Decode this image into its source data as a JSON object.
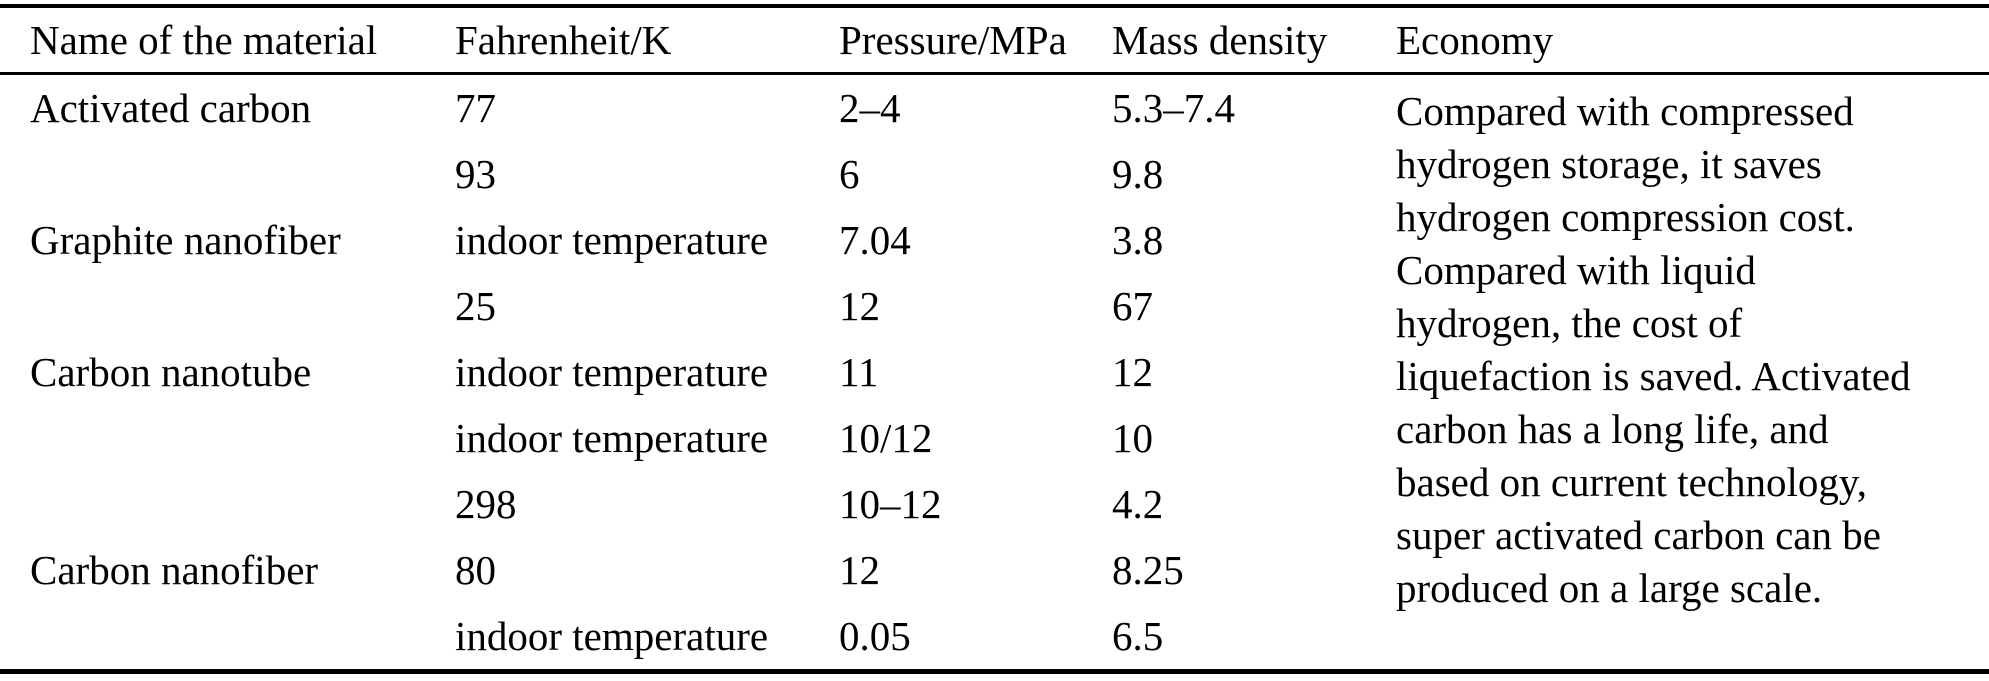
{
  "table": {
    "headers": [
      "Name of the material",
      "Fahrenheit/K",
      "Pressure/MPa",
      "Mass density",
      "Economy"
    ],
    "rows": [
      {
        "material": "Activated carbon",
        "temperature": "77",
        "pressure": "2–4",
        "mass_density": "5.3–7.4"
      },
      {
        "material": "",
        "temperature": "93",
        "pressure": "6",
        "mass_density": "9.8"
      },
      {
        "material": "Graphite nanofiber",
        "temperature": "indoor temperature",
        "pressure": "7.04",
        "mass_density": "3.8"
      },
      {
        "material": "",
        "temperature": "25",
        "pressure": "12",
        "mass_density": "67"
      },
      {
        "material": "Carbon nanotube",
        "temperature": "indoor temperature",
        "pressure": "11",
        "mass_density": "12"
      },
      {
        "material": "",
        "temperature": "indoor temperature",
        "pressure": "10/12",
        "mass_density": "10"
      },
      {
        "material": "",
        "temperature": "298",
        "pressure": "10–12",
        "mass_density": "4.2"
      },
      {
        "material": "Carbon nanofiber",
        "temperature": "80",
        "pressure": "12",
        "mass_density": "8.25"
      },
      {
        "material": "",
        "temperature": "indoor temperature",
        "pressure": "0.05",
        "mass_density": "6.5"
      }
    ],
    "economy": "Compared with compressed hydrogen storage, it saves hydrogen compression cost. Compared with liquid hydrogen, the cost of liquefaction is saved. Activated carbon has a long life, and based on current technology, super activated carbon can be produced on a large scale."
  },
  "colors": {
    "text": "#000000",
    "background": "#ffffff",
    "rule": "#000000"
  }
}
